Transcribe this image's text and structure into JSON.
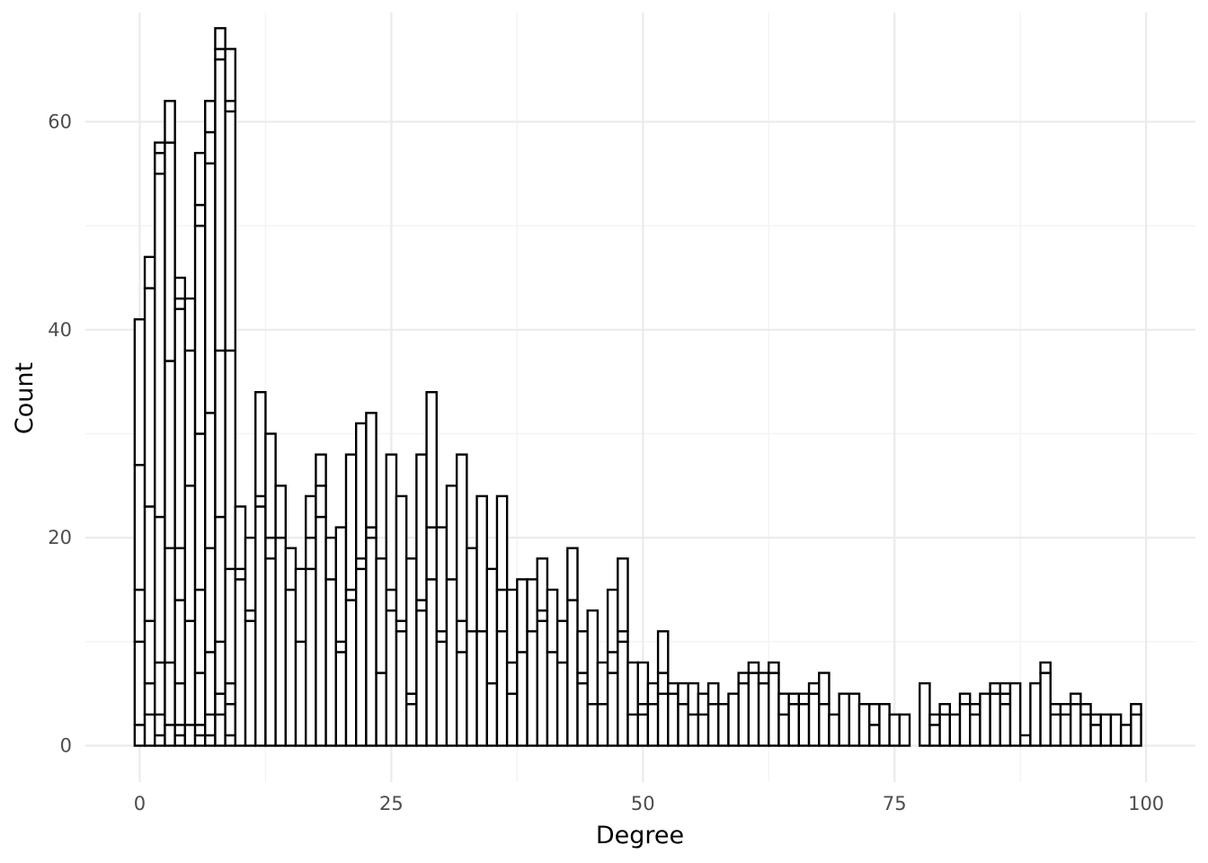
{
  "chart_data": {
    "type": "bar",
    "title": "",
    "xlabel": "Degree",
    "ylabel": "Count",
    "xlim": [
      -5.4,
      104.9
    ],
    "ylim": [
      -3.5,
      70.5
    ],
    "x_ticks": [
      0,
      25,
      50,
      75,
      100
    ],
    "y_ticks": [
      0,
      20,
      40,
      60
    ],
    "x_tick_labels": [
      "0",
      "25",
      "50",
      "75",
      "100"
    ],
    "y_tick_labels": [
      "0",
      "20",
      "40",
      "60"
    ],
    "grid": true,
    "legend": "none",
    "bin_width": 1,
    "stacked": true,
    "x": [
      0,
      1,
      2,
      3,
      4,
      5,
      6,
      7,
      8,
      9,
      10,
      11,
      12,
      13,
      14,
      15,
      16,
      17,
      18,
      19,
      20,
      21,
      22,
      23,
      24,
      25,
      26,
      27,
      28,
      29,
      30,
      31,
      32,
      33,
      34,
      35,
      36,
      37,
      38,
      39,
      40,
      41,
      42,
      43,
      44,
      45,
      46,
      47,
      48,
      49,
      50,
      51,
      52,
      53,
      54,
      55,
      56,
      57,
      58,
      59,
      60,
      61,
      62,
      63,
      64,
      65,
      66,
      67,
      68,
      69,
      70,
      71,
      72,
      73,
      74,
      75,
      76,
      77,
      78,
      79,
      80,
      81,
      82,
      83,
      84,
      85,
      86,
      87,
      88,
      89,
      90,
      91,
      92,
      93,
      94,
      95,
      96,
      97,
      98,
      99
    ],
    "stack_boundaries": [
      [
        2,
        10,
        15,
        27,
        41
      ],
      [
        3,
        6,
        12,
        23,
        44,
        47
      ],
      [
        1,
        3,
        8,
        22,
        55,
        57,
        58
      ],
      [
        2,
        8,
        19,
        37,
        58,
        62
      ],
      [
        1,
        2,
        6,
        14,
        19,
        42,
        43,
        45
      ],
      [
        2,
        12,
        25,
        38,
        43
      ],
      [
        1,
        2,
        7,
        15,
        30,
        50,
        52,
        57
      ],
      [
        1,
        3,
        9,
        19,
        32,
        56,
        59,
        62
      ],
      [
        3,
        5,
        10,
        22,
        38,
        66,
        67,
        69
      ],
      [
        1,
        4,
        6,
        17,
        38,
        61,
        62,
        67
      ],
      [
        16,
        17,
        23
      ],
      [
        12,
        13,
        20
      ],
      [
        23,
        24,
        34
      ],
      [
        18,
        20,
        30
      ],
      [
        20,
        25
      ],
      [
        15,
        19
      ],
      [
        10,
        17
      ],
      [
        17,
        20,
        24
      ],
      [
        22,
        25,
        28
      ],
      [
        16,
        20
      ],
      [
        9,
        10,
        21
      ],
      [
        14,
        15,
        28
      ],
      [
        17,
        18,
        31
      ],
      [
        20,
        21,
        32
      ],
      [
        7,
        18
      ],
      [
        13,
        15,
        28
      ],
      [
        11,
        12,
        24
      ],
      [
        4,
        5,
        18
      ],
      [
        13,
        14,
        28
      ],
      [
        16,
        21,
        34
      ],
      [
        10,
        11,
        21
      ],
      [
        16,
        25
      ],
      [
        9,
        12,
        28
      ],
      [
        11,
        19
      ],
      [
        11,
        24
      ],
      [
        6,
        17
      ],
      [
        11,
        15,
        24
      ],
      [
        5,
        8,
        15
      ],
      [
        9,
        16
      ],
      [
        11,
        16
      ],
      [
        12,
        13,
        18
      ],
      [
        9,
        15
      ],
      [
        8,
        12
      ],
      [
        14,
        19
      ],
      [
        6,
        7,
        11
      ],
      [
        4,
        13
      ],
      [
        4,
        8
      ],
      [
        7,
        9,
        15
      ],
      [
        10,
        11,
        18
      ],
      [
        3,
        8
      ],
      [
        3,
        4,
        8
      ],
      [
        4,
        6
      ],
      [
        5,
        7,
        11
      ],
      [
        5,
        6
      ],
      [
        4,
        6
      ],
      [
        3,
        6
      ],
      [
        3,
        5
      ],
      [
        4,
        6
      ],
      [
        4
      ],
      [
        5
      ],
      [
        6,
        7
      ],
      [
        7,
        8
      ],
      [
        6,
        7
      ],
      [
        7,
        8
      ],
      [
        3,
        5
      ],
      [
        4,
        5
      ],
      [
        4,
        5
      ],
      [
        5,
        6
      ],
      [
        4,
        7
      ],
      [
        3
      ],
      [
        5
      ],
      [
        5
      ],
      [
        4
      ],
      [
        2,
        4
      ],
      [
        4
      ],
      [
        3
      ],
      [
        3
      ],
      [
        0
      ],
      [
        6
      ],
      [
        2,
        3
      ],
      [
        3,
        4
      ],
      [
        3
      ],
      [
        4,
        5
      ],
      [
        3,
        4
      ],
      [
        5
      ],
      [
        5,
        6
      ],
      [
        4,
        5,
        6
      ],
      [
        6
      ],
      [
        1
      ],
      [
        6
      ],
      [
        7,
        8
      ],
      [
        3,
        4
      ],
      [
        3,
        4
      ],
      [
        4,
        5
      ],
      [
        3,
        4
      ],
      [
        2,
        3
      ],
      [
        3
      ],
      [
        3
      ],
      [
        2
      ],
      [
        3,
        4
      ]
    ]
  }
}
